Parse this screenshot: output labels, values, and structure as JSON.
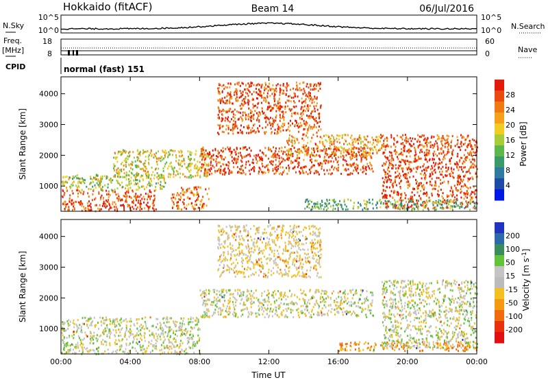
{
  "header": {
    "left": "Hokkaido (fitACF)",
    "center": "Beam 14",
    "right": "06/Jul/2016"
  },
  "noise_panel": {
    "left_label": "N.Sky",
    "right_label": "N.Search",
    "left_ticks": [
      "10^5",
      "10^0"
    ],
    "right_ticks": [
      "10^5",
      "10^0"
    ]
  },
  "freq_panel": {
    "left_label": [
      "Freq.",
      "[MHz]"
    ],
    "right_label": "Nave",
    "left_ticks": [
      "18",
      "8"
    ],
    "right_ticks": [
      "60",
      "0"
    ]
  },
  "cpid": {
    "label": "CPID",
    "text": "normal (fast) 151"
  },
  "colors": {
    "power": [
      "#0018e6",
      "#1e4aa8",
      "#2f7aa0",
      "#3a9a6a",
      "#5cb84a",
      "#a6cc3a",
      "#f2cc22",
      "#f5a01a",
      "#f07a12",
      "#ea4a0e",
      "#e21a0a"
    ],
    "velocity": [
      "#2034c0",
      "#2d6aa8",
      "#3a8c5a",
      "#62c23a",
      "#c4c4c4",
      "#bbbbbb",
      "#f2c020",
      "#f59a10",
      "#f06a0e",
      "#e8300c",
      "#e01010"
    ]
  },
  "chart_data": [
    {
      "type": "heatmap",
      "title": "Power",
      "ylabel": "Slant Range [km]",
      "colorbar_label": "Power [dB]",
      "colorbar_ticks": [
        "4",
        "8",
        "12",
        "16",
        "20",
        "24",
        "28"
      ],
      "y_ticks": [
        "1000",
        "2000",
        "3000",
        "4000"
      ],
      "ylim": [
        180,
        4550
      ],
      "xlim": [
        0,
        24
      ],
      "x_ticks": [
        "00:00",
        "04:00",
        "08:00",
        "12:00",
        "16:00",
        "20:00",
        "00:00"
      ],
      "features": [
        {
          "t0": 0.0,
          "t1": 5.5,
          "r0": 200,
          "r1": 900,
          "power": 26
        },
        {
          "t0": 0.0,
          "t1": 6.0,
          "r0": 900,
          "r1": 1400,
          "power": 15
        },
        {
          "t0": 3.0,
          "t1": 8.5,
          "r0": 1300,
          "r1": 2200,
          "power": 17
        },
        {
          "t0": 6.3,
          "t1": 8.5,
          "r0": 250,
          "r1": 1000,
          "power": 24
        },
        {
          "t0": 8.0,
          "t1": 18.0,
          "r0": 1400,
          "r1": 2300,
          "power": 26
        },
        {
          "t0": 13.0,
          "t1": 18.5,
          "r0": 2000,
          "r1": 2700,
          "power": 21
        },
        {
          "t0": 9.0,
          "t1": 15.0,
          "r0": 2700,
          "r1": 4400,
          "power": 25
        },
        {
          "t0": 18.5,
          "t1": 24.0,
          "r0": 300,
          "r1": 2700,
          "power": 26
        },
        {
          "t0": 14.0,
          "t1": 24.0,
          "r0": 250,
          "r1": 600,
          "power": 12
        }
      ]
    },
    {
      "type": "heatmap",
      "title": "Velocity",
      "ylabel": "Slant Range [km]",
      "xlabel": "Time UT",
      "colorbar_label": "Velocity [m s^-1]",
      "colorbar_ticks": [
        "200",
        "100",
        "50",
        "15",
        "-15",
        "-50",
        "-100",
        "-200"
      ],
      "y_ticks": [
        "1000",
        "2000",
        "3000",
        "4000"
      ],
      "ylim": [
        180,
        4550
      ],
      "xlim": [
        0,
        24
      ],
      "x_ticks": [
        "00:00",
        "04:00",
        "08:00",
        "12:00",
        "16:00",
        "20:00",
        "00:00"
      ],
      "features": [
        {
          "t0": 0.0,
          "t1": 8.0,
          "r0": 200,
          "r1": 1400,
          "velocity": 0
        },
        {
          "t0": 8.0,
          "t1": 18.0,
          "r0": 1400,
          "r1": 2300,
          "velocity": -5
        },
        {
          "t0": 9.0,
          "t1": 15.0,
          "r0": 2700,
          "r1": 4400,
          "velocity": -20
        },
        {
          "t0": 16.0,
          "t1": 24.0,
          "r0": 300,
          "r1": 600,
          "velocity": -55
        },
        {
          "t0": 18.5,
          "t1": 24.0,
          "r0": 400,
          "r1": 2600,
          "velocity": 0
        }
      ]
    }
  ],
  "x_axis": {
    "label": "Time UT"
  }
}
